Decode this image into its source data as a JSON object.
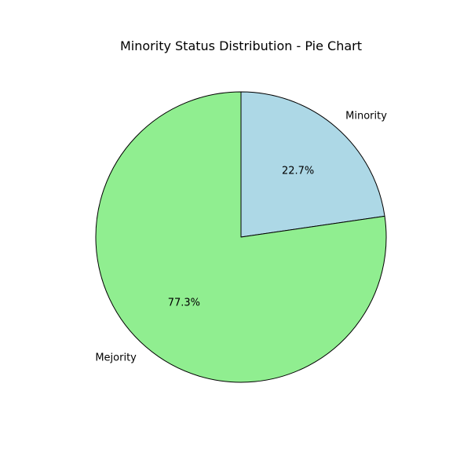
{
  "chart_data": {
    "type": "pie",
    "title": "Minority Status Distribution - Pie Chart",
    "labels": [
      "Minority",
      "Mejority"
    ],
    "values": [
      22.7,
      77.3
    ],
    "percent_labels": [
      "22.7%",
      "77.3%"
    ],
    "colors": [
      "#add8e6",
      "#90ee90"
    ],
    "edge_color": "#000000",
    "start_angle_deg": 90,
    "direction": "clockwise"
  }
}
